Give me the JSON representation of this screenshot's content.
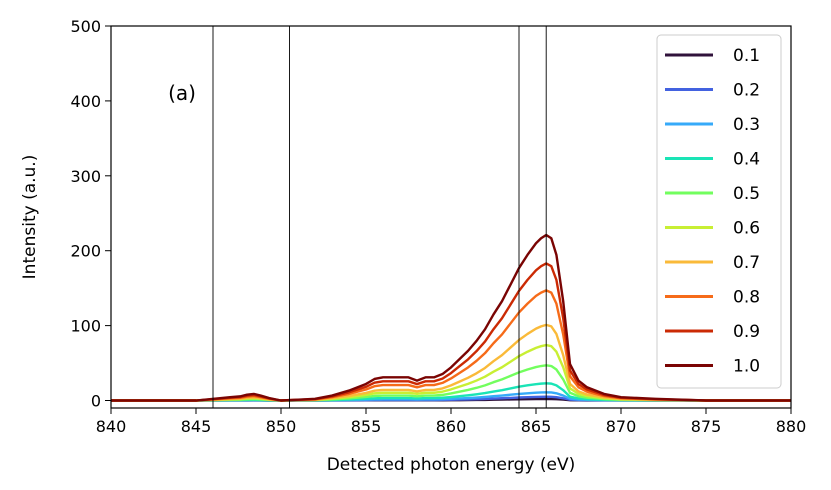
{
  "chart_data": {
    "type": "line",
    "title": "",
    "panel_label": "(a)",
    "xlabel": "Detected photon energy (eV)",
    "ylabel": "Intensity (a.u.)",
    "xlim": [
      840,
      880
    ],
    "ylim": [
      -10,
      500
    ],
    "xticks": [
      840,
      845,
      850,
      855,
      860,
      865,
      870,
      875,
      880
    ],
    "yticks": [
      0,
      100,
      200,
      300,
      400,
      500
    ],
    "grid": false,
    "legend_position": "top-right",
    "vlines": [
      846.0,
      850.5,
      864.0,
      865.6
    ],
    "base_profile": {
      "x": [
        840,
        845,
        847,
        847.6,
        848.0,
        848.4,
        848.8,
        849.3,
        850,
        851,
        852,
        853,
        854,
        855,
        855.5,
        856,
        856.5,
        857,
        857.5,
        858,
        858.5,
        859,
        859.5,
        860,
        860.5,
        861,
        861.5,
        862,
        862.5,
        863,
        863.5,
        864,
        864.5,
        865,
        865.3,
        865.6,
        865.9,
        866.2,
        866.6,
        867,
        867.5,
        868,
        869,
        870,
        872,
        875,
        880
      ],
      "y": [
        0,
        0,
        0.02,
        0.025,
        0.035,
        0.04,
        0.03,
        0.015,
        0,
        0.005,
        0.01,
        0.03,
        0.06,
        0.1,
        0.13,
        0.14,
        0.14,
        0.14,
        0.14,
        0.12,
        0.14,
        0.14,
        0.16,
        0.2,
        0.25,
        0.3,
        0.36,
        0.43,
        0.52,
        0.6,
        0.7,
        0.8,
        0.88,
        0.95,
        0.98,
        1.0,
        0.98,
        0.88,
        0.6,
        0.22,
        0.12,
        0.08,
        0.04,
        0.02,
        0.01,
        0.0,
        0.0
      ]
    },
    "series": [
      {
        "name": "0.1",
        "peak": 2,
        "color": "#30123b"
      },
      {
        "name": "0.2",
        "peak": 5,
        "color": "#4362e0"
      },
      {
        "name": "0.3",
        "peak": 11,
        "color": "#36aaf9"
      },
      {
        "name": "0.4",
        "peak": 23,
        "color": "#1ae4b6"
      },
      {
        "name": "0.5",
        "peak": 47,
        "color": "#72fe5e"
      },
      {
        "name": "0.6",
        "peak": 74,
        "color": "#c8ef34"
      },
      {
        "name": "0.7",
        "peak": 101,
        "color": "#faba39"
      },
      {
        "name": "0.8",
        "peak": 147,
        "color": "#f66b19"
      },
      {
        "name": "0.9",
        "peak": 183,
        "color": "#cb2a04"
      },
      {
        "name": "1.0",
        "peak": 221,
        "color": "#7a0403"
      }
    ]
  }
}
